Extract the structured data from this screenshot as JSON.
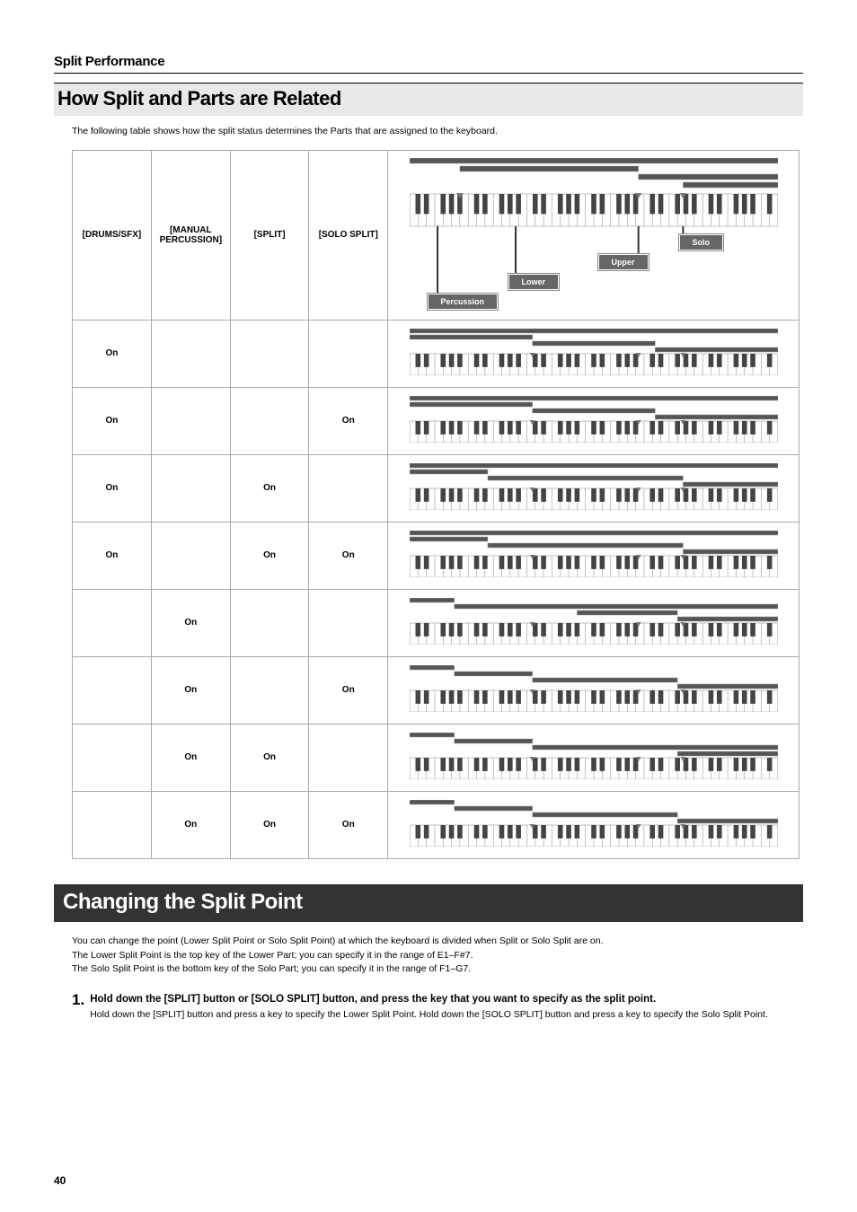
{
  "page": {
    "sectionTitle": "Split Performance",
    "h2": "How Split and Parts are Related",
    "intro": "The following table shows how the split status determines the Parts that are assigned to the keyboard.",
    "h1": "Changing the Split Point",
    "body1": "You can change the point (Lower Split Point or Solo Split Point) at which the keyboard is divided when Split or Solo Split are on.",
    "body2": "The Lower Split Point is the top key of the Lower Part; you can specify it in the range of E1–F#7.",
    "body3": "The Solo Split Point is the bottom key of the Solo Part; you can specify it in the range of F1–G7.",
    "step1num": "1.",
    "step1head": "Hold down the [SPLIT] button or [SOLO SPLIT] button, and press the key that you want to specify as the split point.",
    "step1body": "Hold down the [SPLIT] button and press a key to specify the Lower Split Point. Hold down the [SOLO SPLIT] button and press a key to specify the Solo Split Point.",
    "pageNumber": "40"
  },
  "table": {
    "headers": {
      "c1": "[DRUMS/SFX]",
      "c2": "[MANUAL PERCUSSION]",
      "c3": "[SPLIT]",
      "c4": "[SOLO SPLIT]"
    },
    "labels": {
      "solo": "Solo",
      "upper": "Upper",
      "lower": "Lower",
      "percussion": "Percussion"
    },
    "on": "On",
    "rows": [
      {
        "c1": true,
        "c2": false,
        "c3": false,
        "c4": false,
        "bars": [
          [
            0,
            330
          ],
          [
            0,
            110
          ],
          [
            110,
            220
          ],
          [
            220,
            330
          ]
        ]
      },
      {
        "c1": true,
        "c2": false,
        "c3": false,
        "c4": true,
        "bars": [
          [
            0,
            330
          ],
          [
            0,
            110
          ],
          [
            110,
            220
          ],
          [
            220,
            330
          ]
        ]
      },
      {
        "c1": true,
        "c2": false,
        "c3": true,
        "c4": false,
        "bars": [
          [
            0,
            330
          ],
          [
            0,
            70
          ],
          [
            70,
            245
          ],
          [
            245,
            330
          ]
        ]
      },
      {
        "c1": true,
        "c2": false,
        "c3": true,
        "c4": true,
        "bars": [
          [
            0,
            330
          ],
          [
            0,
            70
          ],
          [
            70,
            245
          ],
          [
            245,
            330
          ]
        ]
      },
      {
        "c1": false,
        "c2": true,
        "c3": false,
        "c4": false,
        "bars": [
          [
            0,
            40
          ],
          [
            40,
            330
          ],
          [
            150,
            240
          ],
          [
            240,
            330
          ]
        ]
      },
      {
        "c1": false,
        "c2": true,
        "c3": false,
        "c4": true,
        "bars": [
          [
            0,
            40
          ],
          [
            40,
            110
          ],
          [
            110,
            240
          ],
          [
            240,
            330
          ]
        ]
      },
      {
        "c1": false,
        "c2": true,
        "c3": true,
        "c4": false,
        "bars": [
          [
            0,
            40
          ],
          [
            40,
            110
          ],
          [
            110,
            330
          ],
          [
            240,
            330
          ]
        ]
      },
      {
        "c1": false,
        "c2": true,
        "c3": true,
        "c4": true,
        "bars": [
          [
            0,
            40
          ],
          [
            40,
            110
          ],
          [
            110,
            240
          ],
          [
            240,
            330
          ]
        ]
      }
    ],
    "headerDiagram": {
      "bars": [
        [
          0,
          330
        ],
        [
          45,
          205
        ],
        [
          205,
          330
        ],
        [
          245,
          330
        ]
      ],
      "markers": [
        45,
        205,
        245
      ]
    },
    "colors": {
      "bar": "#555555",
      "barBorder": "#999999",
      "kbBlack": "#444444",
      "kbWhite": "#ffffff",
      "kbBorder": "#888888"
    }
  }
}
